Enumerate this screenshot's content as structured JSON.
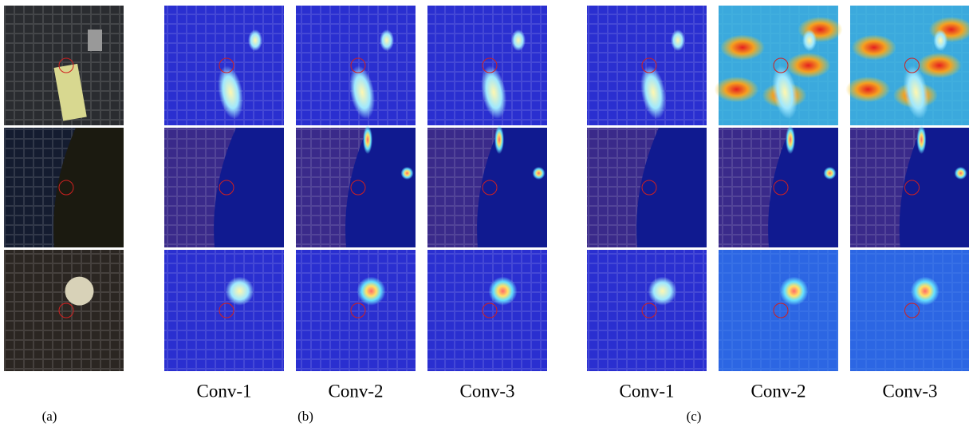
{
  "panels": [
    {
      "label": "(a)"
    },
    {
      "label": "(b)",
      "columns": [
        "Conv-1",
        "Conv-2",
        "Conv-3"
      ]
    },
    {
      "label": "(c)",
      "columns": [
        "Conv-1",
        "Conv-2",
        "Conv-3"
      ]
    }
  ]
}
